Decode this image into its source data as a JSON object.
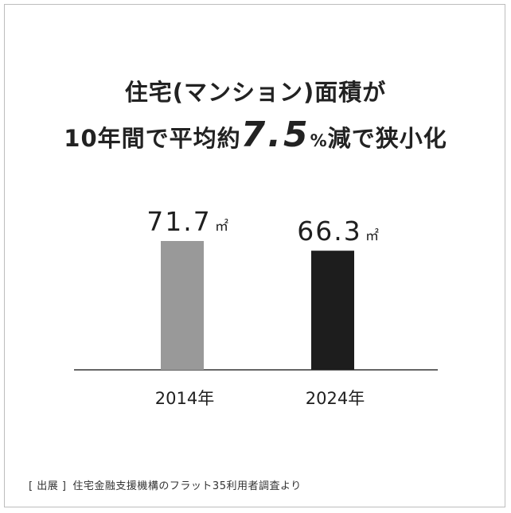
{
  "title": {
    "line1": "住宅(マンション)面積が",
    "line2_prefix": "10年間で平均",
    "line2_highlight_pre": "約",
    "line2_highlight_number": "7.5",
    "line2_highlight_unit": "%",
    "line2_highlight_post": "減",
    "line2_suffix": "で狭小化"
  },
  "colors": {
    "bar_2014": "#999999",
    "bar_2024": "#1d1d1d",
    "highlight": "#f7dfb2",
    "axis": "#333333"
  },
  "chart_data": {
    "type": "bar",
    "categories": [
      "2014年",
      "2024年"
    ],
    "values": [
      71.7,
      66.3
    ],
    "value_labels": [
      "71.7",
      "66.3"
    ],
    "unit": "㎡",
    "ylim": [
      0,
      71.7
    ],
    "grid": false,
    "title": "",
    "xlabel": "",
    "ylabel": ""
  },
  "source": {
    "label": "[ 出展 ]",
    "text": "住宅金融支援機構のフラット35利用者調査より"
  }
}
